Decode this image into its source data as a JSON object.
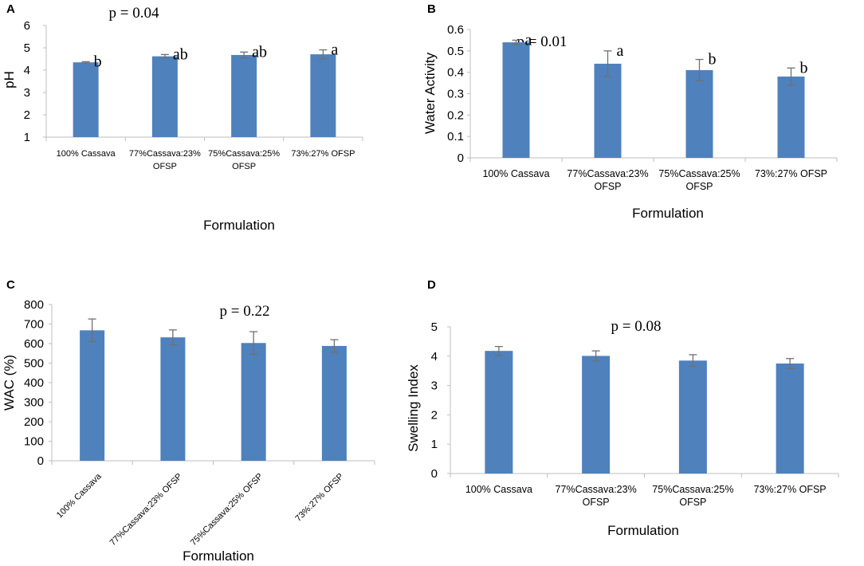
{
  "chart_data": [
    {
      "type": "bar",
      "panel": "A",
      "title": "p = 0.04",
      "xlabel": "",
      "ylabel": "pH",
      "ylim": [
        1,
        6
      ],
      "yticks": [
        1,
        2,
        3,
        4,
        5,
        6
      ],
      "categories": [
        "100% Cassava",
        "77%Cassava:23% OFSP",
        "75%Cassava:25% OFSP",
        "73%:27% OFSP"
      ],
      "values": [
        4.35,
        4.62,
        4.68,
        4.71
      ],
      "errors": [
        0.03,
        0.08,
        0.13,
        0.2
      ],
      "annotations": [
        "b",
        "ab",
        "ab",
        "a"
      ],
      "bar_color": "#4f81bd"
    },
    {
      "type": "bar",
      "panel": "B",
      "title": "p = 0.01",
      "xlabel": "Formulation",
      "ylabel": "Water Activity",
      "ylim": [
        0,
        0.6
      ],
      "yticks": [
        0,
        0.1,
        0.2,
        0.3,
        0.4,
        0.5,
        0.6
      ],
      "categories": [
        "100% Cassava",
        "77%Cassava:23% OFSP",
        "75%Cassava:25% OFSP",
        "73%:27% OFSP"
      ],
      "values": [
        0.54,
        0.44,
        0.41,
        0.38
      ],
      "errors": [
        0.01,
        0.06,
        0.05,
        0.04
      ],
      "annotations": [
        "a",
        "a",
        "b",
        "b"
      ],
      "bar_color": "#4f81bd"
    },
    {
      "type": "bar",
      "panel": "C",
      "title": "p = 0.22",
      "xlabel": "Formulation",
      "ylabel": "WAC (%)",
      "ylim": [
        0,
        800
      ],
      "yticks": [
        0,
        100,
        200,
        300,
        400,
        500,
        600,
        700,
        800
      ],
      "categories": [
        "100% Cassava",
        "77%Cassava:23% OFSP",
        "75%Cassava:25% OFSP",
        "73%:27% OFSP"
      ],
      "values": [
        668,
        632,
        603,
        588
      ],
      "errors": [
        58,
        38,
        58,
        32
      ],
      "annotations": [],
      "bar_color": "#4f81bd"
    },
    {
      "type": "bar",
      "panel": "D",
      "title": "p = 0.08",
      "xlabel": "Formulation",
      "ylabel": "Swelling Index",
      "ylim": [
        0,
        5
      ],
      "yticks": [
        0,
        1,
        2,
        3,
        4,
        5
      ],
      "categories": [
        "100% Cassava",
        "77%Cassava:23% OFSP",
        "75%Cassava:25% OFSP",
        "73%:27% OFSP"
      ],
      "values": [
        4.18,
        4.01,
        3.85,
        3.75
      ],
      "errors": [
        0.15,
        0.17,
        0.2,
        0.17
      ],
      "annotations": [],
      "bar_color": "#4f81bd"
    }
  ],
  "extra_labels": {
    "panel_a_xlabel": "Formulation"
  }
}
